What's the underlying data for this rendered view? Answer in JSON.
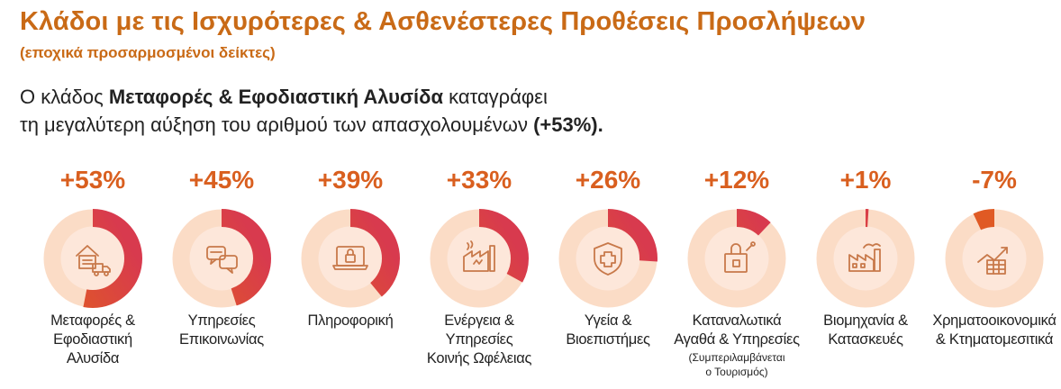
{
  "header": {
    "title": "Κλάδοι με τις Ισχυρότερες & Ασθενέστερες Προθέσεις Προσλήψεων",
    "subtitle": "(εποχικά προσαρμοσμένοι δείκτες)",
    "lead_1a": "Ο κλάδος ",
    "lead_1b": "Μεταφορές & Εφοδιαστική Αλυσίδα",
    "lead_1c": " καταγράφει",
    "lead_2a": "τη μεγαλύτερη αύξηση του αριθμού των απασχολουμένων ",
    "lead_2b": "(+53%)."
  },
  "colors": {
    "title": "#c96a16",
    "percent": "#d95f1f",
    "ring_track": "#fbdcc6",
    "ring_inner": "#fde7da",
    "arc_start": "#e05a24",
    "arc_end": "#d83a4e",
    "icon": "#c8794a"
  },
  "chart_data": {
    "type": "donut",
    "unit": "%",
    "categories": [
      "Μεταφορές & Εφοδιαστική Αλυσίδα",
      "Υπηρεσίες Επικοινωνίας",
      "Πληροφορική",
      "Ενέργεια & Υπηρεσίες Κοινής Ωφέλειας",
      "Υγεία & Βιοεπιστήμες",
      "Καταναλωτικά Αγαθά & Υπηρεσίες",
      "Βιομηχανία & Κατασκευές",
      "Χρηματοοικονομικά & Κτηματομεσιτικά"
    ],
    "values": [
      53,
      45,
      39,
      33,
      26,
      12,
      1,
      -7
    ],
    "sectors": [
      {
        "value": 53,
        "value_label": "+53%",
        "label_lines": [
          "Μεταφορές &",
          "Εφοδιαστική",
          "Αλυσίδα"
        ],
        "icon": "warehouse-truck-icon"
      },
      {
        "value": 45,
        "value_label": "+45%",
        "label_lines": [
          "Υπηρεσίες",
          "Επικοινωνίας"
        ],
        "icon": "chat-bubbles-icon"
      },
      {
        "value": 39,
        "value_label": "+39%",
        "label_lines": [
          "Πληροφορική"
        ],
        "icon": "laptop-lock-icon"
      },
      {
        "value": 33,
        "value_label": "+33%",
        "label_lines": [
          "Ενέργεια &",
          "Υπηρεσίες",
          "Κοινής Ωφέλειας"
        ],
        "icon": "energy-plant-icon"
      },
      {
        "value": 26,
        "value_label": "+26%",
        "label_lines": [
          "Υγεία &",
          "Βιοεπιστήμες"
        ],
        "icon": "medical-shield-icon"
      },
      {
        "value": 12,
        "value_label": "+12%",
        "label_lines": [
          "Καταναλωτικά",
          "Αγαθά & Υπηρεσίες"
        ],
        "note_lines": [
          "(Συμπεριλαμβάνεται",
          "ο Τουρισμός)"
        ],
        "icon": "shopping-bag-icon"
      },
      {
        "value": 1,
        "value_label": "+1%",
        "label_lines": [
          "Βιομηχανία &",
          "Κατασκευές"
        ],
        "icon": "factory-icon"
      },
      {
        "value": -7,
        "value_label": "-7%",
        "label_lines": [
          "Χρηματοοικονομικά",
          "& Κτηματομεσιτικά"
        ],
        "icon": "growth-chart-icon"
      }
    ],
    "scale_max": 100,
    "legend": "none",
    "grid": false
  }
}
